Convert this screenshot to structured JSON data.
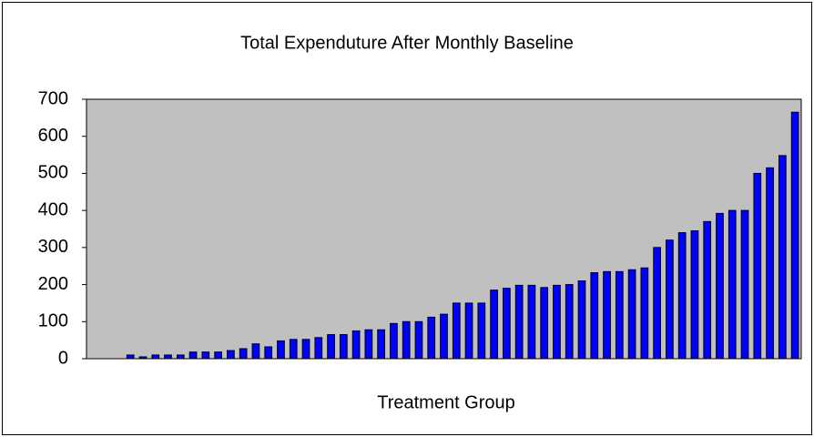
{
  "chart_data": {
    "type": "bar",
    "title": "Total Expenduture After Monthly Baseline",
    "x_label": "Treatment Group",
    "categories": [
      null,
      null,
      null,
      null,
      null,
      null,
      null,
      null,
      null,
      null,
      null,
      null,
      null,
      null,
      null,
      null,
      null,
      null,
      null,
      null,
      null,
      null,
      null,
      null,
      null,
      null,
      null,
      null,
      null,
      null,
      null,
      null,
      null,
      null,
      null,
      null,
      null,
      null,
      null,
      null,
      null,
      null,
      null,
      null,
      null,
      null,
      null,
      null,
      null,
      null,
      null,
      null,
      null,
      null,
      null,
      null,
      null
    ],
    "values": [
      null,
      null,
      null,
      10,
      5,
      10,
      10,
      10,
      18,
      18,
      18,
      22,
      27,
      40,
      32,
      48,
      52,
      52,
      57,
      65,
      65,
      75,
      78,
      78,
      95,
      100,
      100,
      112,
      120,
      150,
      150,
      150,
      185,
      190,
      198,
      198,
      192,
      198,
      200,
      210,
      232,
      235,
      235,
      240,
      245,
      300,
      320,
      340,
      345,
      370,
      392,
      400,
      400,
      500,
      515,
      548,
      665
    ],
    "color": "#0000ff",
    "ylim": [
      0,
      700
    ],
    "yticks": [
      0,
      100,
      200,
      300,
      400,
      500,
      600,
      700
    ],
    "grid": false,
    "plot_background": "#c0c0c0"
  }
}
